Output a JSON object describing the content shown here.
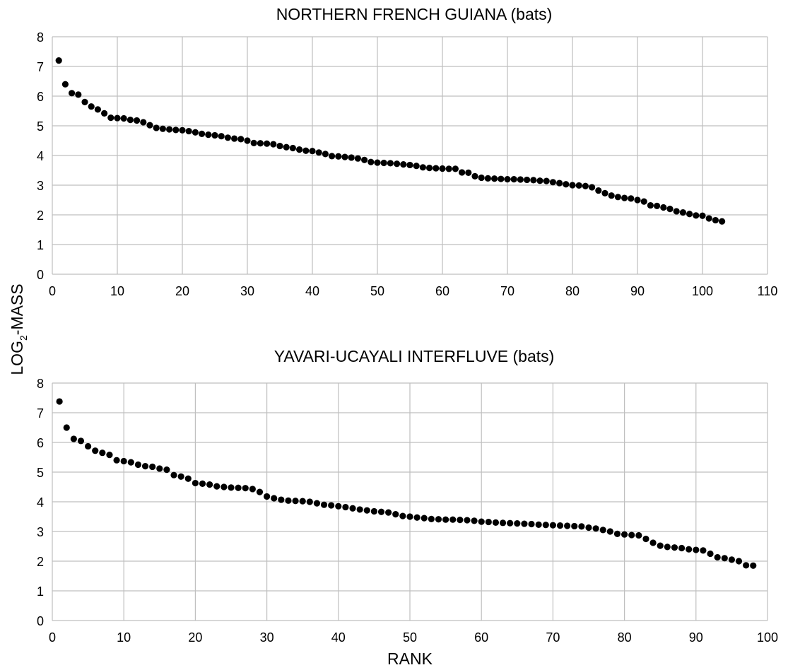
{
  "figure": {
    "ylabel_main": "LOG",
    "ylabel_sub": "2",
    "ylabel_rest": "-MASS",
    "xlabel": "RANK"
  },
  "chart_data": [
    {
      "type": "scatter",
      "title": "NORTHERN FRENCH GUIANA (bats)",
      "xlim": [
        0,
        110
      ],
      "ylim": [
        0,
        8
      ],
      "xticks": [
        0,
        10,
        20,
        30,
        40,
        50,
        60,
        70,
        80,
        90,
        100,
        110
      ],
      "yticks": [
        0,
        1,
        2,
        3,
        4,
        5,
        6,
        7,
        8
      ],
      "grid": true,
      "marker_color": "#000000",
      "grid_color": "#bfbfbf",
      "x": [
        1,
        2,
        3,
        4,
        5,
        6,
        7,
        8,
        9,
        10,
        11,
        12,
        13,
        14,
        15,
        16,
        17,
        18,
        19,
        20,
        21,
        22,
        23,
        24,
        25,
        26,
        27,
        28,
        29,
        30,
        31,
        32,
        33,
        34,
        35,
        36,
        37,
        38,
        39,
        40,
        41,
        42,
        43,
        44,
        45,
        46,
        47,
        48,
        49,
        50,
        51,
        52,
        53,
        54,
        55,
        56,
        57,
        58,
        59,
        60,
        61,
        62,
        63,
        64,
        65,
        66,
        67,
        68,
        69,
        70,
        71,
        72,
        73,
        74,
        75,
        76,
        77,
        78,
        79,
        80,
        81,
        82,
        83,
        84,
        85,
        86,
        87,
        88,
        89,
        90,
        91,
        92,
        93,
        94,
        95,
        96,
        97,
        98,
        99,
        100,
        101,
        102,
        103
      ],
      "y": [
        7.2,
        6.4,
        6.1,
        6.05,
        5.8,
        5.65,
        5.55,
        5.42,
        5.27,
        5.26,
        5.25,
        5.2,
        5.18,
        5.12,
        5.02,
        4.93,
        4.9,
        4.88,
        4.86,
        4.85,
        4.82,
        4.78,
        4.73,
        4.7,
        4.68,
        4.65,
        4.6,
        4.57,
        4.55,
        4.5,
        4.42,
        4.41,
        4.4,
        4.38,
        4.32,
        4.28,
        4.25,
        4.2,
        4.16,
        4.15,
        4.1,
        4.05,
        3.98,
        3.97,
        3.95,
        3.93,
        3.9,
        3.85,
        3.78,
        3.76,
        3.75,
        3.74,
        3.72,
        3.7,
        3.68,
        3.65,
        3.6,
        3.58,
        3.57,
        3.56,
        3.55,
        3.55,
        3.43,
        3.42,
        3.3,
        3.25,
        3.23,
        3.22,
        3.21,
        3.2,
        3.2,
        3.19,
        3.18,
        3.17,
        3.15,
        3.14,
        3.1,
        3.07,
        3.03,
        3.0,
        2.99,
        2.97,
        2.93,
        2.82,
        2.73,
        2.65,
        2.6,
        2.57,
        2.55,
        2.5,
        2.45,
        2.32,
        2.3,
        2.25,
        2.2,
        2.12,
        2.08,
        2.03,
        1.98,
        1.97,
        1.88,
        1.82,
        1.78
      ]
    },
    {
      "type": "scatter",
      "title": "YAVARI-UCAYALI INTERFLUVE (bats)",
      "xlim": [
        0,
        100
      ],
      "ylim": [
        0,
        8
      ],
      "xticks": [
        0,
        10,
        20,
        30,
        40,
        50,
        60,
        70,
        80,
        90,
        100
      ],
      "yticks": [
        0,
        1,
        2,
        3,
        4,
        5,
        6,
        7,
        8
      ],
      "grid": true,
      "marker_color": "#000000",
      "grid_color": "#bfbfbf",
      "x": [
        1,
        2,
        3,
        4,
        5,
        6,
        7,
        8,
        9,
        10,
        11,
        12,
        13,
        14,
        15,
        16,
        17,
        18,
        19,
        20,
        21,
        22,
        23,
        24,
        25,
        26,
        27,
        28,
        29,
        30,
        31,
        32,
        33,
        34,
        35,
        36,
        37,
        38,
        39,
        40,
        41,
        42,
        43,
        44,
        45,
        46,
        47,
        48,
        49,
        50,
        51,
        52,
        53,
        54,
        55,
        56,
        57,
        58,
        59,
        60,
        61,
        62,
        63,
        64,
        65,
        66,
        67,
        68,
        69,
        70,
        71,
        72,
        73,
        74,
        75,
        76,
        77,
        78,
        79,
        80,
        81,
        82,
        83,
        84,
        85,
        86,
        87,
        88,
        89,
        90,
        91,
        92,
        93,
        94,
        95,
        96,
        97,
        98
      ],
      "y": [
        7.38,
        6.5,
        6.12,
        6.05,
        5.87,
        5.72,
        5.65,
        5.58,
        5.4,
        5.37,
        5.33,
        5.25,
        5.2,
        5.18,
        5.12,
        5.08,
        4.9,
        4.85,
        4.78,
        4.63,
        4.61,
        4.58,
        4.52,
        4.5,
        4.48,
        4.47,
        4.46,
        4.43,
        4.33,
        4.18,
        4.12,
        4.07,
        4.04,
        4.03,
        4.02,
        4.0,
        3.95,
        3.9,
        3.88,
        3.85,
        3.82,
        3.78,
        3.74,
        3.71,
        3.68,
        3.66,
        3.64,
        3.58,
        3.52,
        3.5,
        3.47,
        3.45,
        3.42,
        3.41,
        3.4,
        3.4,
        3.39,
        3.38,
        3.36,
        3.33,
        3.32,
        3.3,
        3.29,
        3.28,
        3.27,
        3.26,
        3.25,
        3.23,
        3.22,
        3.21,
        3.2,
        3.19,
        3.18,
        3.17,
        3.13,
        3.1,
        3.05,
        3.0,
        2.92,
        2.9,
        2.88,
        2.87,
        2.75,
        2.62,
        2.52,
        2.48,
        2.46,
        2.44,
        2.4,
        2.38,
        2.36,
        2.25,
        2.13,
        2.1,
        2.05,
        2.0,
        1.86,
        1.85
      ]
    }
  ]
}
